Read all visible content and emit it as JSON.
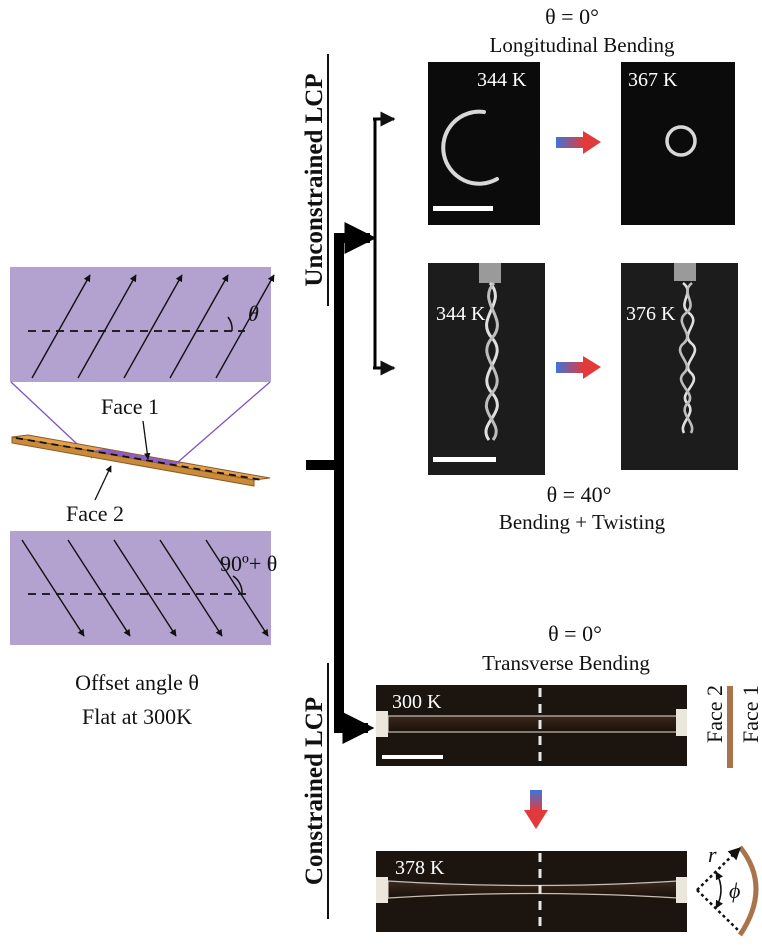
{
  "colors": {
    "lcp_fill": "#b3a1cf",
    "strip_orange": "#e3a04e",
    "face_bar": "#a9744b",
    "gradient_start": "#3f74d8",
    "gradient_end": "#e23a3a",
    "background": "#ffffff",
    "photo_bg": "#0b0b0b",
    "strip_photo_bg": "#2a1e16"
  },
  "left": {
    "top_angle_label": "θ",
    "face1_label": "Face 1",
    "face2_label": "Face 2",
    "bottom_angle_label": "90º+ θ",
    "caption_line1": "Offset angle  θ",
    "caption_line2": "Flat at 300K"
  },
  "branches": {
    "unconstrained_label": "Unconstrained LCP",
    "constrained_label": "Constrained LCP"
  },
  "longitudinal": {
    "angle": "θ = 0°",
    "title": "Longitudinal Bending",
    "temp_before": "344 K",
    "temp_after": "367 K"
  },
  "twisting": {
    "temp_before": "344 K",
    "temp_after": "376 K",
    "angle": "θ = 40°",
    "title": "Bending + Twisting"
  },
  "transverse": {
    "angle": "θ = 0°",
    "title": "Transverse Bending",
    "temp_before": "300 K",
    "temp_after": "378 K",
    "face2": "Face 2",
    "face1": "Face 1",
    "radius_symbol": "r",
    "phi_symbol": "ϕ"
  }
}
